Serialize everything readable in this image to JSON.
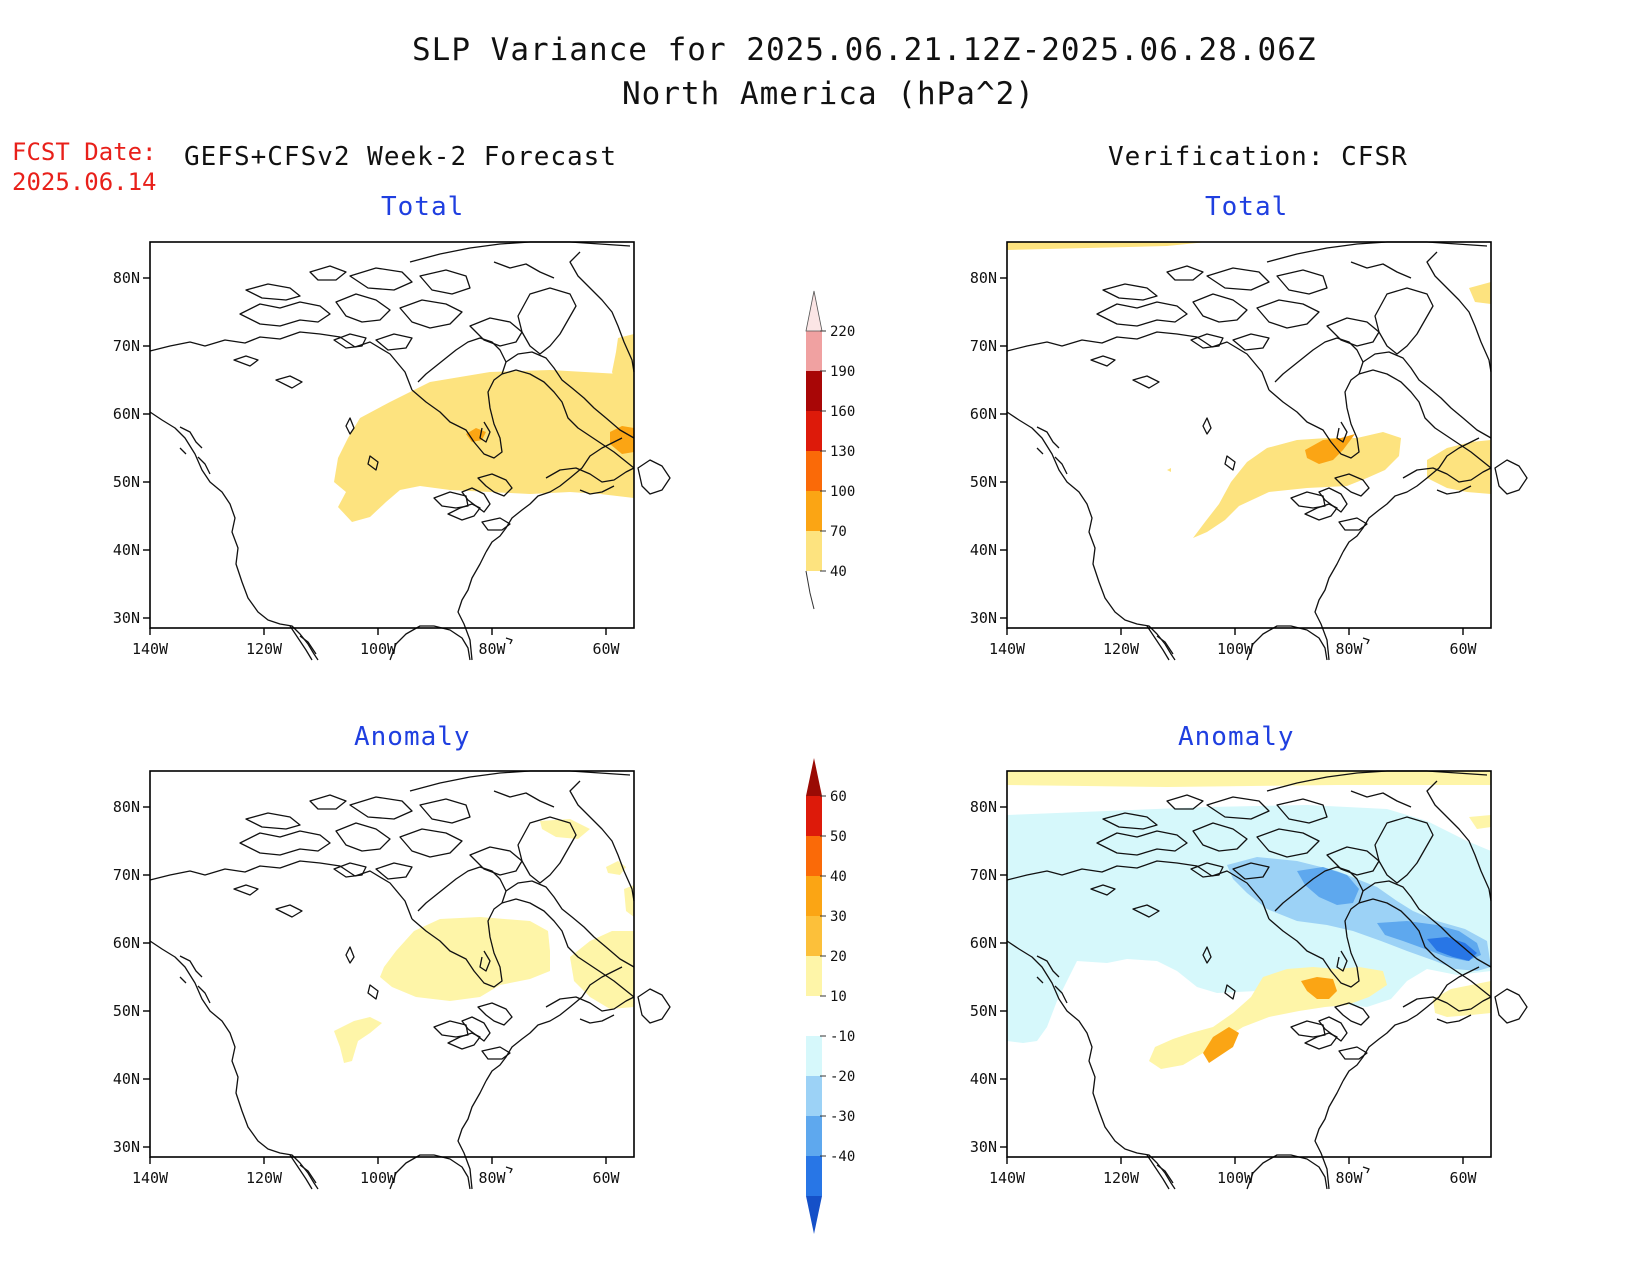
{
  "title": {
    "line1": "SLP Variance for 2025.06.21.12Z-2025.06.28.06Z",
    "line2": "North America (hPa^2)"
  },
  "fcst": {
    "label": "FCST Date:",
    "date": "2025.06.14"
  },
  "columns": {
    "left": "GEFS+CFSv2 Week-2 Forecast",
    "right": "Verification: CFSR"
  },
  "panels": [
    {
      "id": "fcst-total",
      "title": "Total"
    },
    {
      "id": "verif-total",
      "title": "Total"
    },
    {
      "id": "fcst-anomaly",
      "title": "Anomaly"
    },
    {
      "id": "verif-anomaly",
      "title": "Anomaly"
    }
  ],
  "axes": {
    "lon_ticks": [
      "140W",
      "120W",
      "100W",
      "80W",
      "60W"
    ],
    "lat_ticks": [
      "80N",
      "70N",
      "60N",
      "50N",
      "40N",
      "30N"
    ]
  },
  "colorbars": {
    "total": {
      "levels": [
        "40",
        "70",
        "100",
        "130",
        "160",
        "190",
        "220"
      ],
      "colors": [
        "#fde37f",
        "#fba514",
        "#fa6a08",
        "#dd1a0a",
        "#a80606",
        "#f0a1a1",
        "#fbe5e5"
      ]
    },
    "anomaly": {
      "levels": [
        "60",
        "50",
        "40",
        "30",
        "20",
        "10",
        "-10",
        "-20",
        "-30",
        "-40"
      ],
      "colors": [
        "#9a0a04",
        "#dd1a0a",
        "#fa6a08",
        "#fba514",
        "#fcc03a",
        "#fef5a8",
        "#ffffff",
        "#d6f8fb",
        "#9cd2f6",
        "#5ea8ee",
        "#2876e6",
        "#1550c8"
      ]
    }
  }
}
